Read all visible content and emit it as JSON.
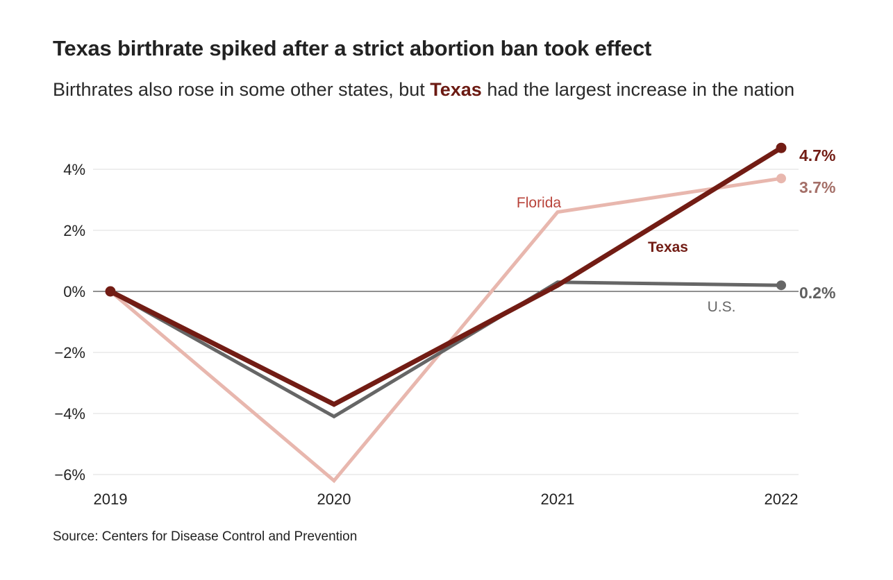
{
  "title": "Texas birthrate spiked after a strict abortion ban took effect",
  "subtitle": {
    "before": "Birthrates also rose in some other states, but ",
    "highlight": "Texas",
    "after": " had the largest increase in the nation"
  },
  "source": "Source: Centers for Disease Control and Prevention",
  "chart_data": {
    "type": "line",
    "x": [
      "2019",
      "2020",
      "2021",
      "2022"
    ],
    "ylim": [
      -6.3,
      5.0
    ],
    "y_ticks": [
      4,
      2,
      0,
      -2,
      -4,
      -6
    ],
    "y_tick_labels": [
      "4%",
      "2%",
      "0%",
      "−2%",
      "−4%",
      "−6%"
    ],
    "grid": true,
    "series": [
      {
        "key": "florida",
        "name": "Florida",
        "values": [
          0,
          -6.2,
          2.6,
          3.7
        ],
        "color": "#e8b7ae",
        "end_label": "3.7%",
        "end_label_color": "#a46f68"
      },
      {
        "key": "us",
        "name": "U.S.",
        "values": [
          0,
          -4.1,
          0.3,
          0.2
        ],
        "color": "#666666",
        "end_label": "0.2%",
        "end_label_color": "#5f5f5f"
      },
      {
        "key": "texas",
        "name": "Texas",
        "values": [
          0,
          -3.7,
          0.2,
          4.7
        ],
        "color": "#721c14",
        "end_label": "4.7%",
        "end_label_color": "#721c14"
      }
    ]
  }
}
